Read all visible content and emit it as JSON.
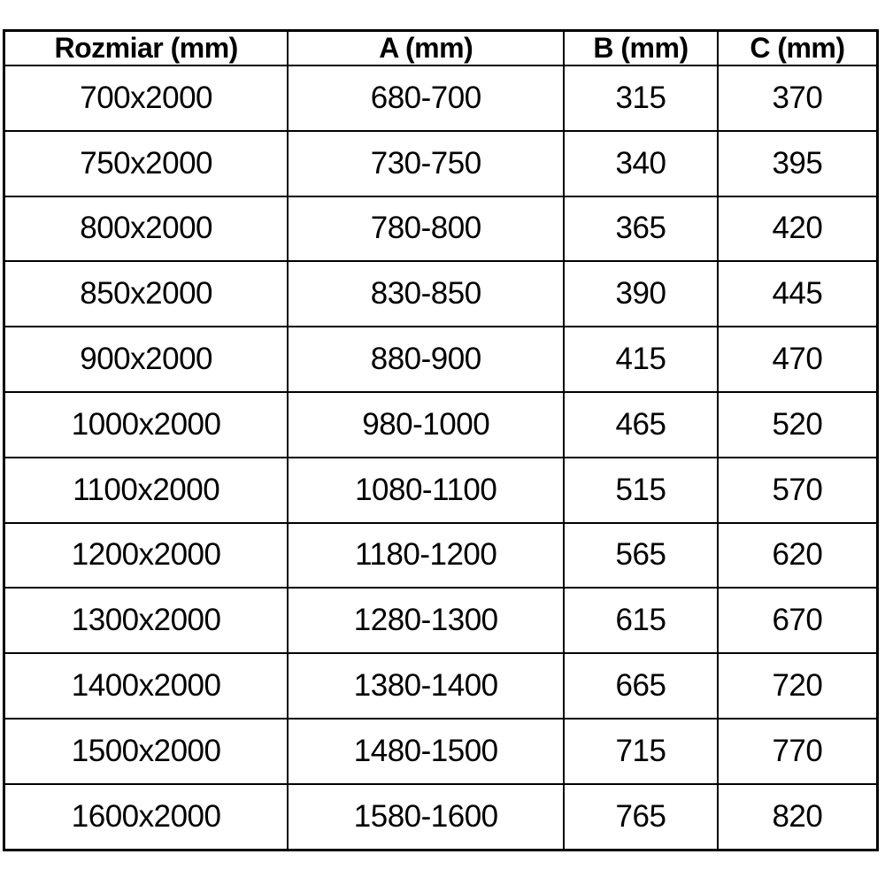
{
  "table": {
    "columns": [
      "Rozmiar (mm)",
      "A (mm)",
      "B (mm)",
      "C (mm)"
    ],
    "rows": [
      [
        "700x2000",
        "680-700",
        "315",
        "370"
      ],
      [
        "750x2000",
        "730-750",
        "340",
        "395"
      ],
      [
        "800x2000",
        "780-800",
        "365",
        "420"
      ],
      [
        "850x2000",
        "830-850",
        "390",
        "445"
      ],
      [
        "900x2000",
        "880-900",
        "415",
        "470"
      ],
      [
        "1000x2000",
        "980-1000",
        "465",
        "520"
      ],
      [
        "1100x2000",
        "1080-1100",
        "515",
        "570"
      ],
      [
        "1200x2000",
        "1180-1200",
        "565",
        "620"
      ],
      [
        "1300x2000",
        "1280-1300",
        "615",
        "670"
      ],
      [
        "1400x2000",
        "1380-1400",
        "665",
        "720"
      ],
      [
        "1500x2000",
        "1480-1500",
        "715",
        "770"
      ],
      [
        "1600x2000",
        "1580-1600",
        "765",
        "820"
      ]
    ]
  },
  "chart_data": {
    "type": "table",
    "title": "",
    "columns": [
      "Rozmiar (mm)",
      "A (mm)",
      "B (mm)",
      "C (mm)"
    ],
    "rows": [
      [
        "700x2000",
        "680-700",
        "315",
        "370"
      ],
      [
        "750x2000",
        "730-750",
        "340",
        "395"
      ],
      [
        "800x2000",
        "780-800",
        "365",
        "420"
      ],
      [
        "850x2000",
        "830-850",
        "390",
        "445"
      ],
      [
        "900x2000",
        "880-900",
        "415",
        "470"
      ],
      [
        "1000x2000",
        "980-1000",
        "465",
        "520"
      ],
      [
        "1100x2000",
        "1080-1100",
        "515",
        "570"
      ],
      [
        "1200x2000",
        "1180-1200",
        "565",
        "620"
      ],
      [
        "1300x2000",
        "1280-1300",
        "615",
        "670"
      ],
      [
        "1400x2000",
        "1380-1400",
        "665",
        "720"
      ],
      [
        "1500x2000",
        "1480-1500",
        "715",
        "770"
      ],
      [
        "1600x2000",
        "1580-1600",
        "765",
        "820"
      ]
    ]
  },
  "colors": {
    "border": "#000000",
    "text": "#000000",
    "background": "#ffffff"
  }
}
